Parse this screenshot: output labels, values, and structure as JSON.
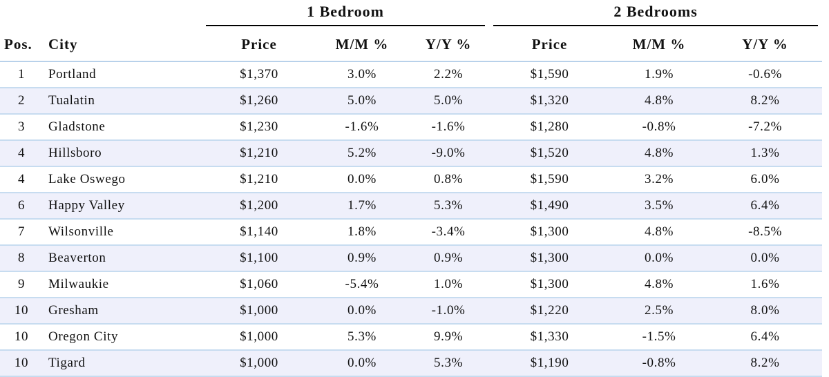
{
  "groups": {
    "one_bedroom": "1 Bedroom",
    "two_bedrooms": "2 Bedrooms"
  },
  "headers": {
    "pos": "Pos.",
    "city": "City",
    "price1": "Price",
    "mm1": "M/M %",
    "yy1": "Y/Y %",
    "price2": "Price",
    "mm2": "M/M %",
    "yy2": "Y/Y %"
  },
  "rows": [
    {
      "pos": "1",
      "city": "Portland",
      "price1": "$1,370",
      "mm1": "3.0%",
      "yy1": "2.2%",
      "price2": "$1,590",
      "mm2": "1.9%",
      "yy2": "-0.6%"
    },
    {
      "pos": "2",
      "city": "Tualatin",
      "price1": "$1,260",
      "mm1": "5.0%",
      "yy1": "5.0%",
      "price2": "$1,320",
      "mm2": "4.8%",
      "yy2": "8.2%"
    },
    {
      "pos": "3",
      "city": "Gladstone",
      "price1": "$1,230",
      "mm1": "-1.6%",
      "yy1": "-1.6%",
      "price2": "$1,280",
      "mm2": "-0.8%",
      "yy2": "-7.2%"
    },
    {
      "pos": "4",
      "city": "Hillsboro",
      "price1": "$1,210",
      "mm1": "5.2%",
      "yy1": "-9.0%",
      "price2": "$1,520",
      "mm2": "4.8%",
      "yy2": "1.3%"
    },
    {
      "pos": "4",
      "city": "Lake Oswego",
      "price1": "$1,210",
      "mm1": "0.0%",
      "yy1": "0.8%",
      "price2": "$1,590",
      "mm2": "3.2%",
      "yy2": "6.0%"
    },
    {
      "pos": "6",
      "city": "Happy Valley",
      "price1": "$1,200",
      "mm1": "1.7%",
      "yy1": "5.3%",
      "price2": "$1,490",
      "mm2": "3.5%",
      "yy2": "6.4%"
    },
    {
      "pos": "7",
      "city": "Wilsonville",
      "price1": "$1,140",
      "mm1": "1.8%",
      "yy1": "-3.4%",
      "price2": "$1,300",
      "mm2": "4.8%",
      "yy2": "-8.5%"
    },
    {
      "pos": "8",
      "city": "Beaverton",
      "price1": "$1,100",
      "mm1": "0.9%",
      "yy1": "0.9%",
      "price2": "$1,300",
      "mm2": "0.0%",
      "yy2": "0.0%"
    },
    {
      "pos": "9",
      "city": "Milwaukie",
      "price1": "$1,060",
      "mm1": "-5.4%",
      "yy1": "1.0%",
      "price2": "$1,300",
      "mm2": "4.8%",
      "yy2": "1.6%"
    },
    {
      "pos": "10",
      "city": "Gresham",
      "price1": "$1,000",
      "mm1": "0.0%",
      "yy1": "-1.0%",
      "price2": "$1,220",
      "mm2": "2.5%",
      "yy2": "8.0%"
    },
    {
      "pos": "10",
      "city": "Oregon City",
      "price1": "$1,000",
      "mm1": "5.3%",
      "yy1": "9.9%",
      "price2": "$1,330",
      "mm2": "-1.5%",
      "yy2": "6.4%"
    },
    {
      "pos": "10",
      "city": "Tigard",
      "price1": "$1,000",
      "mm1": "0.0%",
      "yy1": "5.3%",
      "price2": "$1,190",
      "mm2": "-0.8%",
      "yy2": "8.2%"
    }
  ],
  "colors": {
    "stripe": "#eff0fb",
    "row_border": "#c7dcf0",
    "group_rule": "#000000"
  }
}
